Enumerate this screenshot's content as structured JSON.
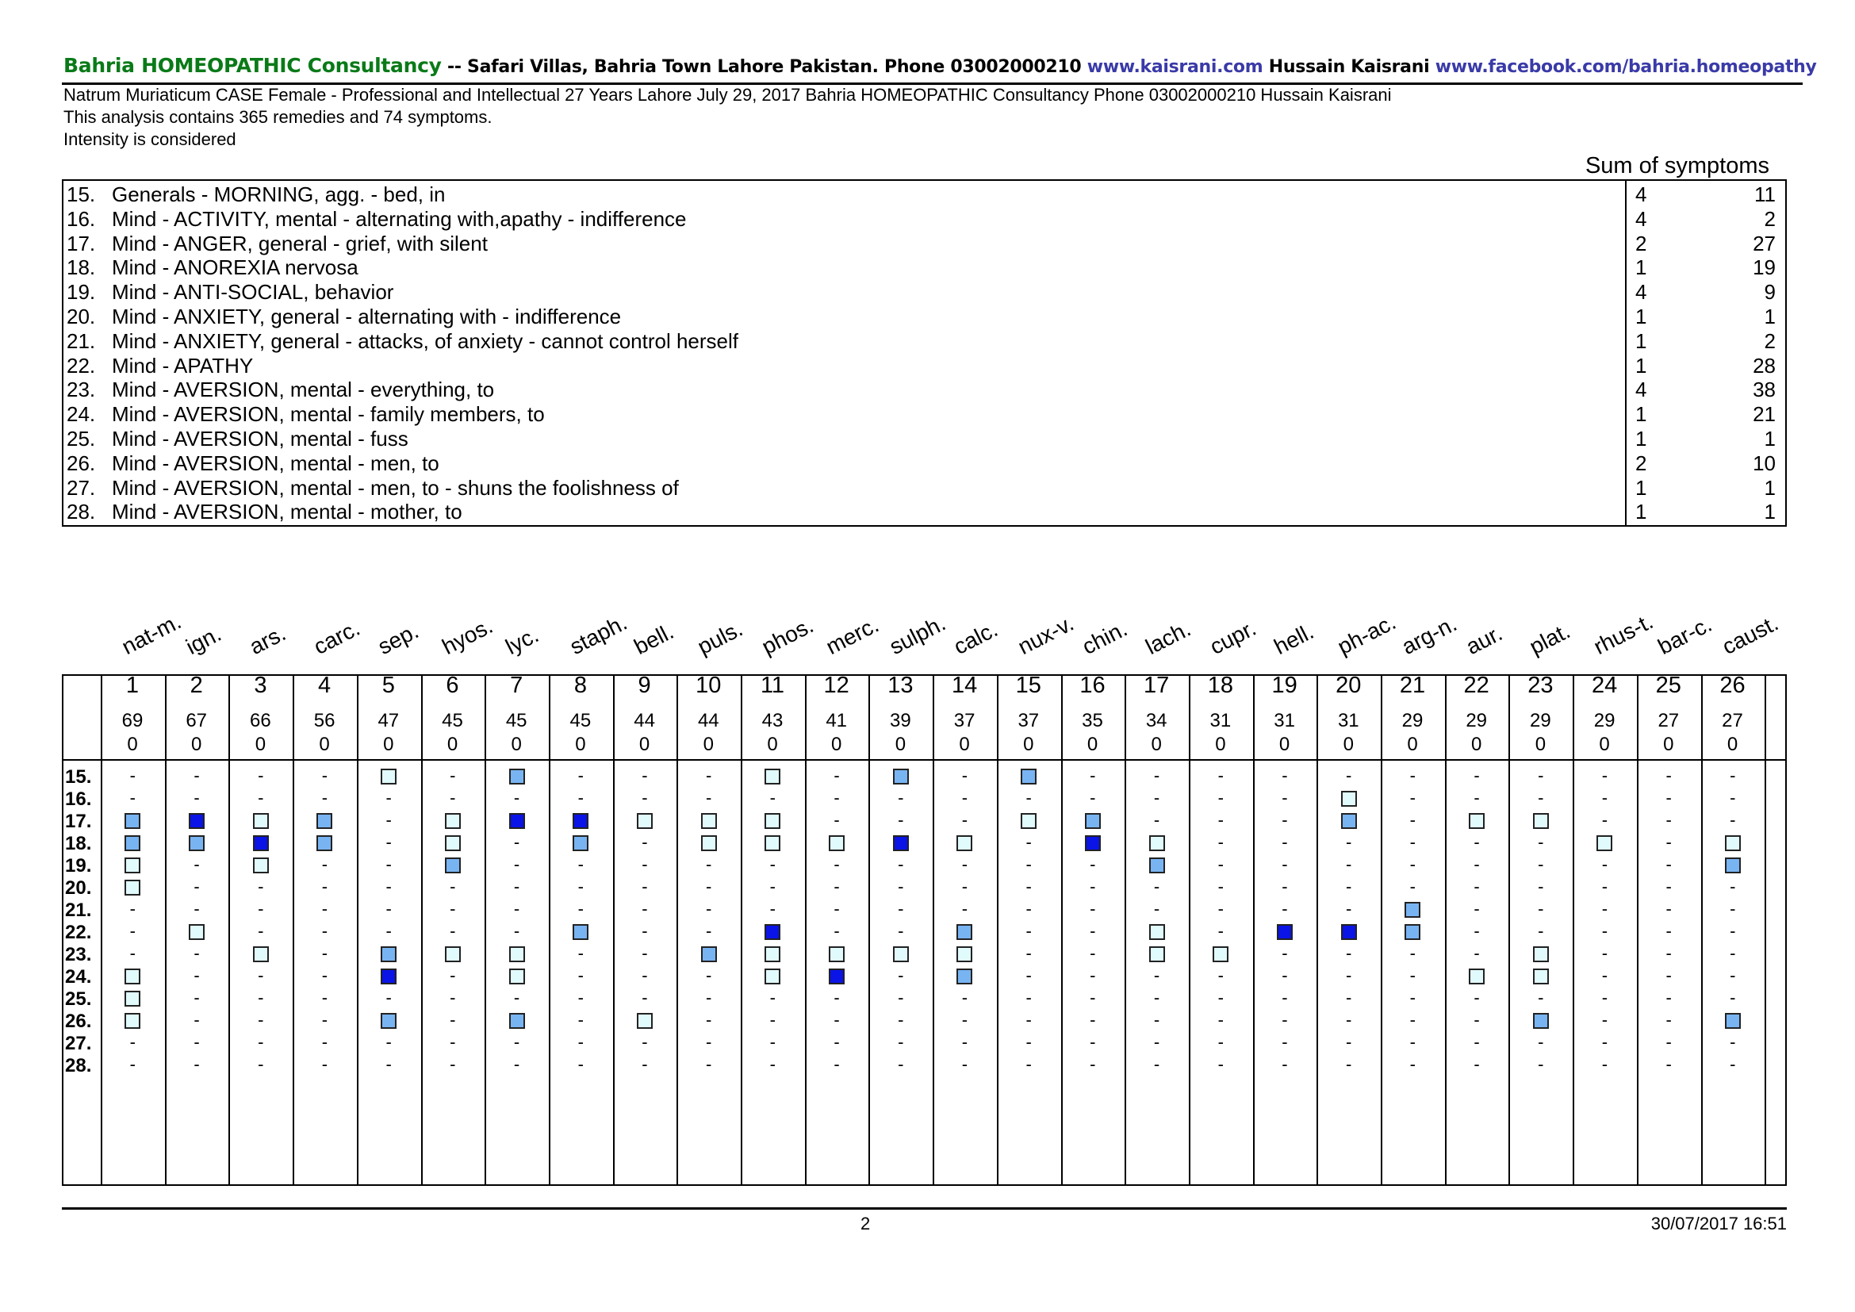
{
  "header": {
    "brand": "Bahria HOMEOPATHIC Consultancy",
    "separator": " -- ",
    "address": "Safari Villas, Bahria Town Lahore Pakistan. Phone 03002000210 ",
    "website": "www.kaisrani.com",
    "author": " Hussain Kaisrani ",
    "facebook": "www.facebook.com/bahria.homeopathy",
    "brand_color": "#0a7a18",
    "link_color": "#3a3aa8"
  },
  "info": {
    "case_line": "Natrum Muriaticum CASE Female -  Professional and Intellectual 27 Years Lahore July 29, 2017 Bahria HOMEOPATHIC Consultancy Phone 03002000210 Hussain Kaisrani",
    "analysis_line": "This analysis contains 365 remedies and 74 symptoms.",
    "intensity_line": "Intensity is considered"
  },
  "symptoms_header": "Sum of symptoms",
  "symptoms": [
    {
      "num": "15.",
      "text": "Generals - MORNING, agg. - bed, in",
      "count": "4",
      "sum": "11"
    },
    {
      "num": "16.",
      "text": "Mind - ACTIVITY, mental - alternating with,apathy - indifference",
      "count": "4",
      "sum": "2"
    },
    {
      "num": "17.",
      "text": "Mind - ANGER, general - grief, with silent",
      "count": "2",
      "sum": "27"
    },
    {
      "num": "18.",
      "text": "Mind - ANOREXIA nervosa",
      "count": "1",
      "sum": "19"
    },
    {
      "num": "19.",
      "text": "Mind - ANTI-SOCIAL, behavior",
      "count": "4",
      "sum": "9"
    },
    {
      "num": "20.",
      "text": "Mind - ANXIETY, general - alternating with - indifference",
      "count": "1",
      "sum": "1"
    },
    {
      "num": "21.",
      "text": "Mind - ANXIETY, general - attacks, of anxiety - cannot control herself",
      "count": "1",
      "sum": "2"
    },
    {
      "num": "22.",
      "text": "Mind - APATHY",
      "count": "1",
      "sum": "28"
    },
    {
      "num": "23.",
      "text": "Mind - AVERSION, mental - everything, to",
      "count": "4",
      "sum": "38"
    },
    {
      "num": "24.",
      "text": "Mind - AVERSION, mental - family members, to",
      "count": "1",
      "sum": "21"
    },
    {
      "num": "25.",
      "text": "Mind - AVERSION, mental - fuss",
      "count": "1",
      "sum": "1"
    },
    {
      "num": "26.",
      "text": "Mind - AVERSION, mental - men, to",
      "count": "2",
      "sum": "10"
    },
    {
      "num": "27.",
      "text": "Mind - AVERSION, mental - men, to - shuns the foolishness of",
      "count": "1",
      "sum": "1"
    },
    {
      "num": "28.",
      "text": "Mind - AVERSION, mental - mother, to",
      "count": "1",
      "sum": "1"
    }
  ],
  "grade_colors": {
    "1": "#e1fafc",
    "2": "#79b4f2",
    "3": "#0a14e6"
  },
  "remedies": [
    {
      "name": "nat-m.",
      "num": "1",
      "score": "69",
      "sub": "0",
      "marks": [
        0,
        0,
        2,
        2,
        1,
        1,
        0,
        0,
        0,
        1,
        1,
        1,
        0,
        0
      ]
    },
    {
      "name": "ign.",
      "num": "2",
      "score": "67",
      "sub": "0",
      "marks": [
        0,
        0,
        3,
        2,
        0,
        0,
        0,
        1,
        0,
        0,
        0,
        0,
        0,
        0
      ]
    },
    {
      "name": "ars.",
      "num": "3",
      "score": "66",
      "sub": "0",
      "marks": [
        0,
        0,
        1,
        3,
        1,
        0,
        0,
        0,
        1,
        0,
        0,
        0,
        0,
        0
      ]
    },
    {
      "name": "carc.",
      "num": "4",
      "score": "56",
      "sub": "0",
      "marks": [
        0,
        0,
        2,
        2,
        0,
        0,
        0,
        0,
        0,
        0,
        0,
        0,
        0,
        0
      ]
    },
    {
      "name": "sep.",
      "num": "5",
      "score": "47",
      "sub": "0",
      "marks": [
        1,
        0,
        0,
        0,
        0,
        0,
        0,
        0,
        2,
        3,
        0,
        2,
        0,
        0
      ]
    },
    {
      "name": "hyos.",
      "num": "6",
      "score": "45",
      "sub": "0",
      "marks": [
        0,
        0,
        1,
        1,
        2,
        0,
        0,
        0,
        1,
        0,
        0,
        0,
        0,
        0
      ]
    },
    {
      "name": "lyc.",
      "num": "7",
      "score": "45",
      "sub": "0",
      "marks": [
        2,
        0,
        3,
        0,
        0,
        0,
        0,
        0,
        1,
        1,
        0,
        2,
        0,
        0
      ]
    },
    {
      "name": "staph.",
      "num": "8",
      "score": "45",
      "sub": "0",
      "marks": [
        0,
        0,
        3,
        2,
        0,
        0,
        0,
        2,
        0,
        0,
        0,
        0,
        0,
        0
      ]
    },
    {
      "name": "bell.",
      "num": "9",
      "score": "44",
      "sub": "0",
      "marks": [
        0,
        0,
        1,
        0,
        0,
        0,
        0,
        0,
        0,
        0,
        0,
        1,
        0,
        0
      ]
    },
    {
      "name": "puls.",
      "num": "10",
      "score": "44",
      "sub": "0",
      "marks": [
        0,
        0,
        1,
        1,
        0,
        0,
        0,
        0,
        2,
        0,
        0,
        0,
        0,
        0
      ]
    },
    {
      "name": "phos.",
      "num": "11",
      "score": "43",
      "sub": "0",
      "marks": [
        1,
        0,
        1,
        1,
        0,
        0,
        0,
        3,
        1,
        1,
        0,
        0,
        0,
        0
      ]
    },
    {
      "name": "merc.",
      "num": "12",
      "score": "41",
      "sub": "0",
      "marks": [
        0,
        0,
        0,
        1,
        0,
        0,
        0,
        0,
        1,
        3,
        0,
        0,
        0,
        0
      ]
    },
    {
      "name": "sulph.",
      "num": "13",
      "score": "39",
      "sub": "0",
      "marks": [
        2,
        0,
        0,
        3,
        0,
        0,
        0,
        0,
        1,
        0,
        0,
        0,
        0,
        0
      ]
    },
    {
      "name": "calc.",
      "num": "14",
      "score": "37",
      "sub": "0",
      "marks": [
        0,
        0,
        0,
        1,
        0,
        0,
        0,
        2,
        1,
        2,
        0,
        0,
        0,
        0
      ]
    },
    {
      "name": "nux-v.",
      "num": "15",
      "score": "37",
      "sub": "0",
      "marks": [
        2,
        0,
        1,
        0,
        0,
        0,
        0,
        0,
        0,
        0,
        0,
        0,
        0,
        0
      ]
    },
    {
      "name": "chin.",
      "num": "16",
      "score": "35",
      "sub": "0",
      "marks": [
        0,
        0,
        2,
        3,
        0,
        0,
        0,
        0,
        0,
        0,
        0,
        0,
        0,
        0
      ]
    },
    {
      "name": "lach.",
      "num": "17",
      "score": "34",
      "sub": "0",
      "marks": [
        0,
        0,
        0,
        1,
        2,
        0,
        0,
        1,
        1,
        0,
        0,
        0,
        0,
        0
      ]
    },
    {
      "name": "cupr.",
      "num": "18",
      "score": "31",
      "sub": "0",
      "marks": [
        0,
        0,
        0,
        0,
        0,
        0,
        0,
        0,
        1,
        0,
        0,
        0,
        0,
        0
      ]
    },
    {
      "name": "hell.",
      "num": "19",
      "score": "31",
      "sub": "0",
      "marks": [
        0,
        0,
        0,
        0,
        0,
        0,
        0,
        3,
        0,
        0,
        0,
        0,
        0,
        0
      ]
    },
    {
      "name": "ph-ac.",
      "num": "20",
      "score": "31",
      "sub": "0",
      "marks": [
        0,
        1,
        2,
        0,
        0,
        0,
        0,
        3,
        0,
        0,
        0,
        0,
        0,
        0
      ]
    },
    {
      "name": "arg-n.",
      "num": "21",
      "score": "29",
      "sub": "0",
      "marks": [
        0,
        0,
        0,
        0,
        0,
        0,
        2,
        2,
        0,
        0,
        0,
        0,
        0,
        0
      ]
    },
    {
      "name": "aur.",
      "num": "22",
      "score": "29",
      "sub": "0",
      "marks": [
        0,
        0,
        1,
        0,
        0,
        0,
        0,
        0,
        0,
        1,
        0,
        0,
        0,
        0
      ]
    },
    {
      "name": "plat.",
      "num": "23",
      "score": "29",
      "sub": "0",
      "marks": [
        0,
        0,
        1,
        0,
        0,
        0,
        0,
        0,
        1,
        1,
        0,
        2,
        0,
        0
      ]
    },
    {
      "name": "rhus-t.",
      "num": "24",
      "score": "29",
      "sub": "0",
      "marks": [
        0,
        0,
        0,
        1,
        0,
        0,
        0,
        0,
        0,
        0,
        0,
        0,
        0,
        0
      ]
    },
    {
      "name": "bar-c.",
      "num": "25",
      "score": "27",
      "sub": "0",
      "marks": [
        0,
        0,
        0,
        0,
        0,
        0,
        0,
        0,
        0,
        0,
        0,
        0,
        0,
        0
      ]
    },
    {
      "name": "caust.",
      "num": "26",
      "score": "27",
      "sub": "0",
      "marks": [
        0,
        0,
        0,
        1,
        2,
        0,
        0,
        0,
        0,
        0,
        0,
        2,
        0,
        0
      ]
    }
  ],
  "dash_symbol": "-",
  "footer": {
    "page": "2",
    "datetime": "30/07/2017 16:51"
  }
}
